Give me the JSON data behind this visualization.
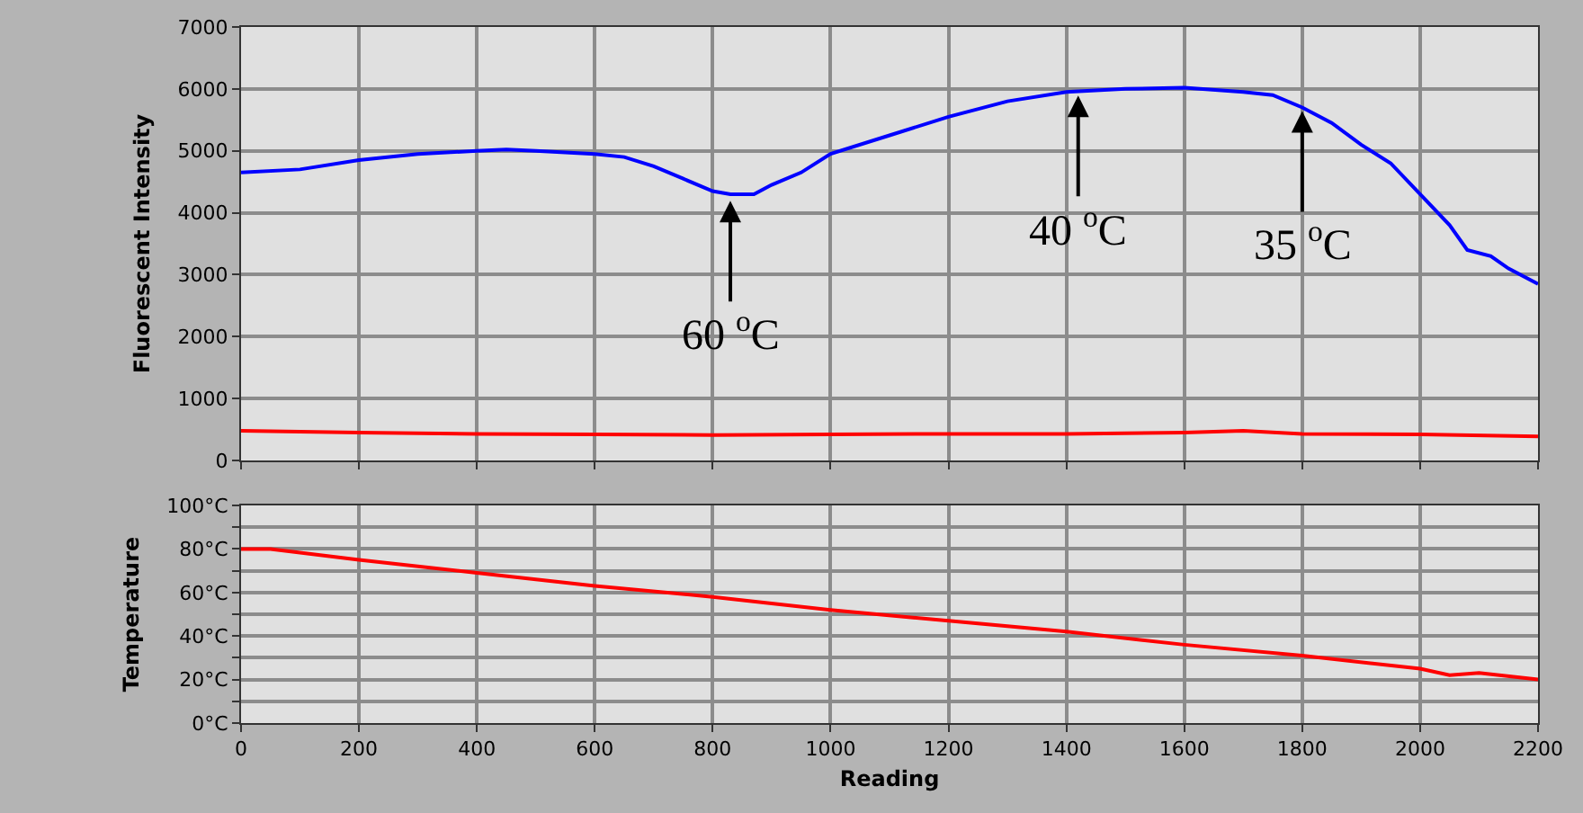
{
  "chart_data": [
    {
      "type": "line",
      "ylabel": "Fluorescent Intensity",
      "xlim": [
        0,
        2200
      ],
      "ylim": [
        0,
        7000
      ],
      "xticks": [
        0,
        200,
        400,
        600,
        800,
        1000,
        1200,
        1400,
        1600,
        1800,
        2000,
        2200
      ],
      "yticks": [
        0,
        1000,
        2000,
        3000,
        4000,
        5000,
        6000,
        7000
      ],
      "tick_labels": "y",
      "grid": true,
      "series": [
        {
          "color": "#0000ff",
          "x": [
            0,
            100,
            200,
            300,
            400,
            450,
            500,
            600,
            650,
            700,
            750,
            800,
            830,
            870,
            900,
            950,
            1000,
            1100,
            1200,
            1300,
            1400,
            1500,
            1600,
            1700,
            1750,
            1800,
            1850,
            1900,
            1950,
            2000,
            2050,
            2080,
            2120,
            2150,
            2200
          ],
          "values": [
            4650,
            4700,
            4850,
            4950,
            5000,
            5020,
            5000,
            4950,
            4900,
            4750,
            4550,
            4350,
            4300,
            4300,
            4450,
            4650,
            4950,
            5250,
            5550,
            5800,
            5950,
            6000,
            6020,
            5950,
            5900,
            5700,
            5450,
            5100,
            4800,
            4300,
            3800,
            3400,
            3300,
            3100,
            2850
          ]
        },
        {
          "color": "#ff0000",
          "x": [
            0,
            200,
            400,
            600,
            800,
            1000,
            1200,
            1400,
            1600,
            1700,
            1800,
            2000,
            2200
          ],
          "values": [
            480,
            450,
            430,
            420,
            410,
            420,
            430,
            430,
            450,
            480,
            430,
            420,
            390
          ]
        }
      ],
      "annotations": [
        {
          "text": "60 $^{o}$C",
          "x": 830,
          "y": 4250
        },
        {
          "text": "40 $^{o}$C",
          "x": 1420,
          "y": 5950
        },
        {
          "text": "35 $^{o}$C",
          "x": 1800,
          "y": 5700
        }
      ]
    },
    {
      "type": "line",
      "xlabel": "Reading",
      "ylabel": "Temperature",
      "xlim": [
        0,
        2200
      ],
      "ylim": [
        0,
        100
      ],
      "xticks": [
        0,
        200,
        400,
        600,
        800,
        1000,
        1200,
        1400,
        1600,
        1800,
        2000,
        2200
      ],
      "yticks": [
        {
          "value": 0,
          "label": "0°C"
        },
        {
          "value": 10,
          "label": null
        },
        {
          "value": 20,
          "label": "20°C"
        },
        {
          "value": 30,
          "label": null
        },
        {
          "value": 40,
          "label": "40°C"
        },
        {
          "value": 50,
          "label": null
        },
        {
          "value": 60,
          "label": "60°C"
        },
        {
          "value": 70,
          "label": null
        },
        {
          "value": 80,
          "label": "80°C"
        },
        {
          "value": 90,
          "label": null
        },
        {
          "value": 100,
          "label": "100°C"
        }
      ],
      "grid": true,
      "series": [
        {
          "color": "#ff0000",
          "x": [
            0,
            50,
            200,
            400,
            600,
            800,
            1000,
            1200,
            1400,
            1600,
            1800,
            2000,
            2050,
            2100,
            2200
          ],
          "values": [
            80,
            80,
            75,
            69,
            63,
            58,
            52,
            47,
            42,
            36,
            31,
            25,
            22,
            23,
            20
          ]
        }
      ]
    }
  ]
}
